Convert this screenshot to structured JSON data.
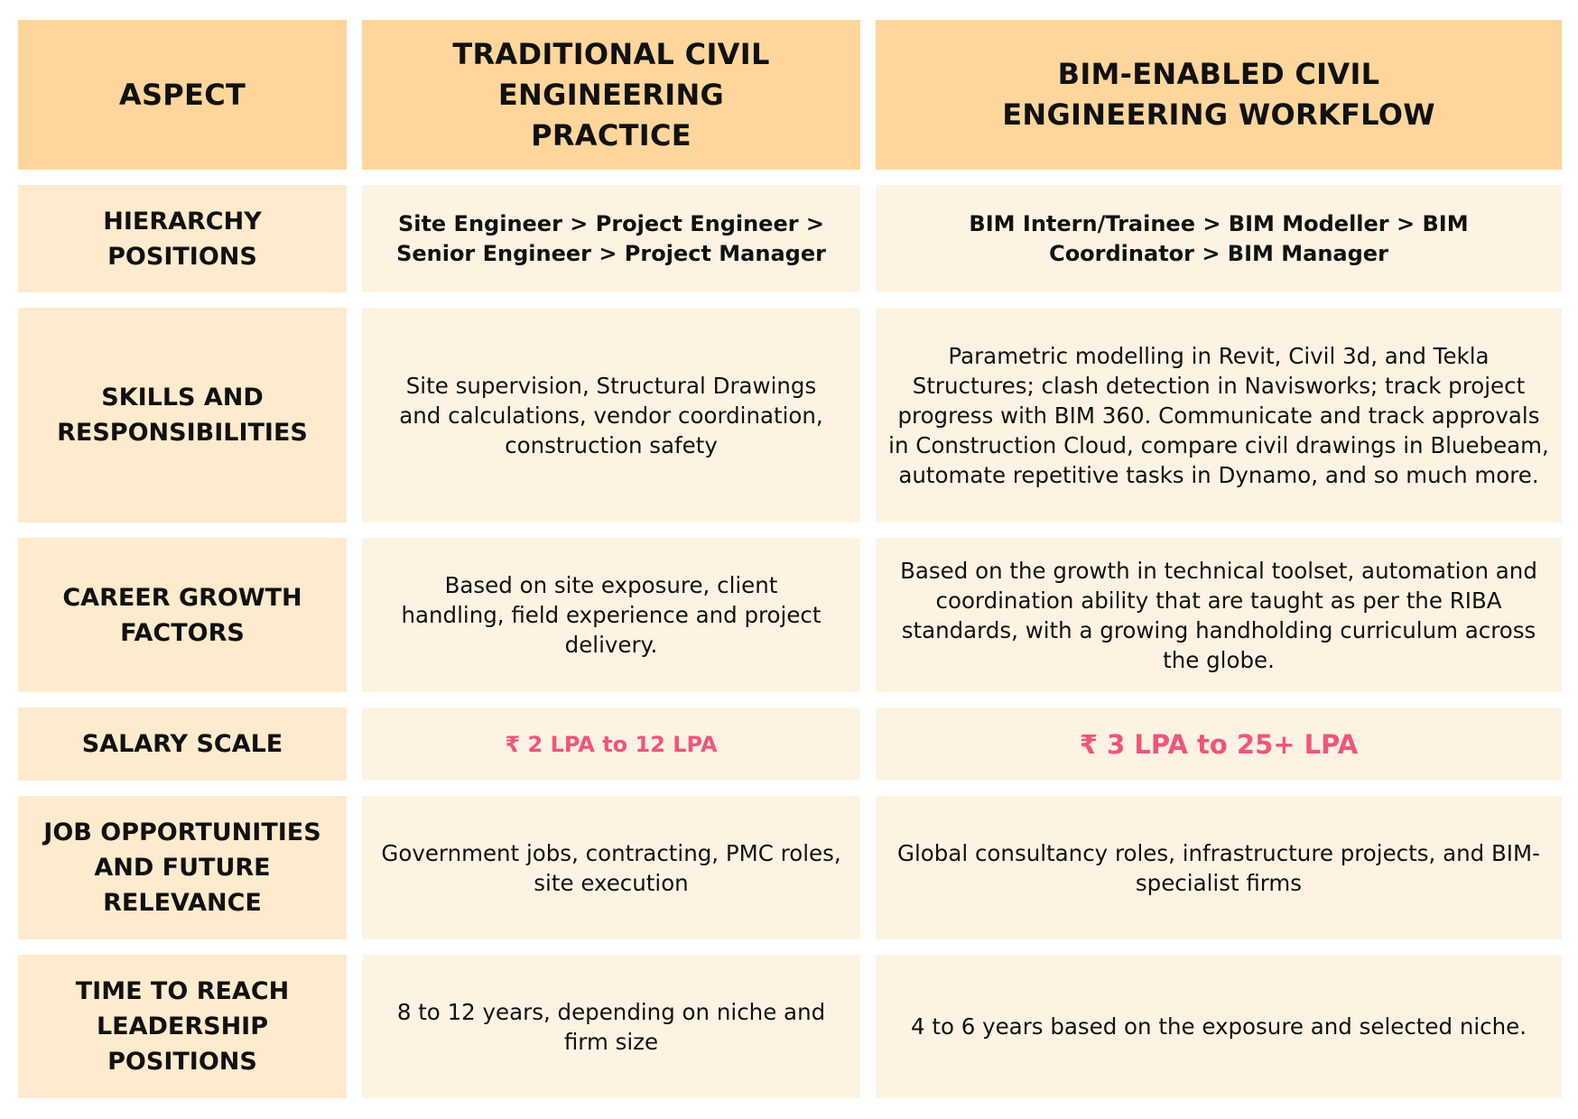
{
  "headers": {
    "aspect": "ASPECT",
    "traditional": "TRADITIONAL CIVIL ENGINEERING PRACTICE",
    "bim": "BIM-ENABLED CIVIL ENGINEERING WORKFLOW"
  },
  "rows": [
    {
      "aspect": "HIERARCHY POSITIONS",
      "traditional": "Site Engineer > Project Engineer > Senior Engineer > Project Manager",
      "bim": "BIM Intern/Trainee > BIM Modeller > BIM Coordinator >  BIM Manager"
    },
    {
      "aspect": "SKILLS AND RESPONSIBILITIES",
      "traditional": "Site supervision, Structural Drawings and calculations, vendor coordination, construction safety",
      "bim": "Parametric modelling in Revit, Civil 3d, and Tekla Structures; clash detection in Navisworks; track project progress with BIM 360. Communicate and track approvals in Construction Cloud, compare civil drawings in Bluebeam, automate repetitive tasks in Dynamo, and so much more."
    },
    {
      "aspect": "CAREER GROWTH FACTORS",
      "traditional": "Based on site exposure, client handling, field experience and project delivery.",
      "bim": "Based on the growth in technical toolset, automation and coordination ability that are taught as per the RIBA standards, with a growing handholding curriculum across the globe."
    },
    {
      "aspect": "SALARY SCALE",
      "traditional": "₹ 2 LPA to 12 LPA",
      "bim": "₹ 3 LPA to 25+ LPA"
    },
    {
      "aspect": "JOB OPPORTUNITIES AND FUTURE RELEVANCE",
      "traditional": "Government jobs, contracting, PMC roles, site execution",
      "bim": "Global consultancy roles, infrastructure projects, and BIM-specialist firms"
    },
    {
      "aspect": "TIME TO REACH LEADERSHIP POSITIONS",
      "traditional": "8 to 12 years, depending on niche and firm size",
      "bim": "4 to 6 years based on the exposure and selected niche."
    }
  ],
  "colors": {
    "header_bg": "#fed69b",
    "aspect_bg": "#feeacd",
    "body_bg": "#fef3e3",
    "salary_text": "#f0557a"
  }
}
